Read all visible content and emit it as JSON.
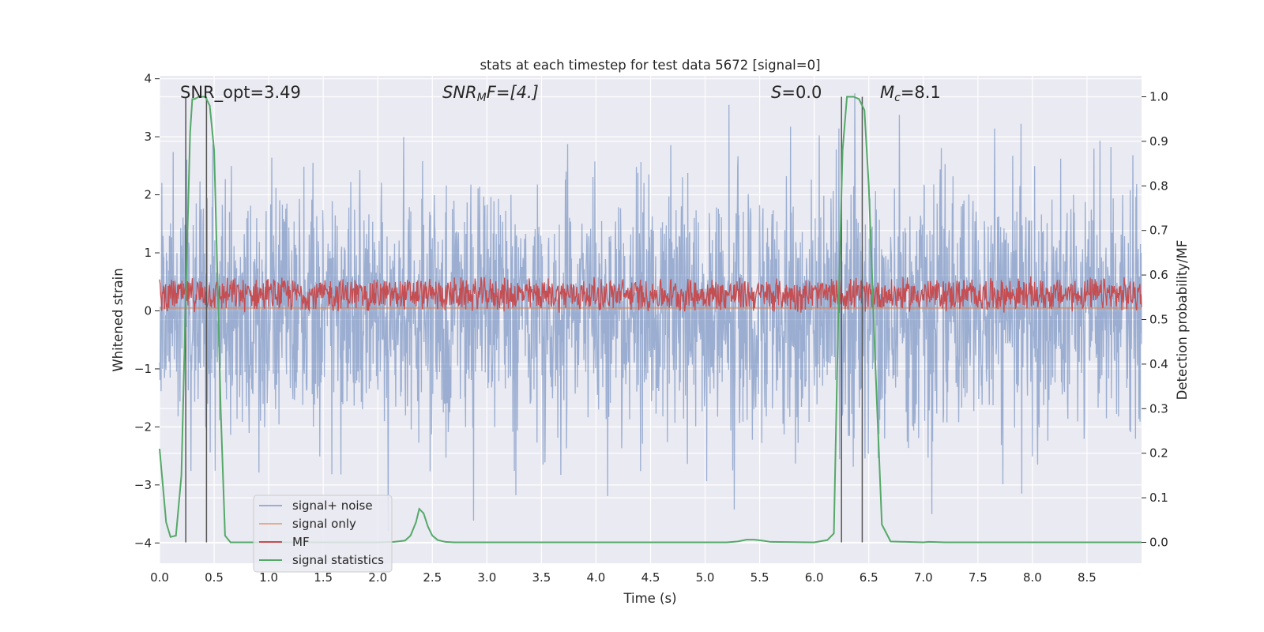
{
  "chart_data": {
    "type": "line",
    "title": "stats at each timestep for test data 5672 [signal=0]",
    "xlabel": "Time (s)",
    "ylabel": "Whitened strain",
    "y2label": "Detection probability/MF",
    "xlim": [
      0.0,
      9.0
    ],
    "ylim": [
      -4.35,
      4.05
    ],
    "y2lim": [
      -0.047,
      1.047
    ],
    "xticks": [
      "0.0",
      "0.5",
      "1.0",
      "1.5",
      "2.0",
      "2.5",
      "3.0",
      "3.5",
      "4.0",
      "4.5",
      "5.0",
      "5.5",
      "6.0",
      "6.5",
      "7.0",
      "7.5",
      "8.0",
      "8.5"
    ],
    "yticks": [
      "4",
      "3",
      "2",
      "1",
      "0",
      "−1",
      "−2",
      "−3",
      "−4"
    ],
    "y2ticks": [
      "1.0",
      "0.9",
      "0.8",
      "0.7",
      "0.6",
      "0.5",
      "0.4",
      "0.3",
      "0.2",
      "0.1",
      "0.0"
    ],
    "annotations": {
      "snr_opt": "SNR_opt=3.49",
      "snr_mf_main": "SNR",
      "snr_mf_sub": "M",
      "snr_mf_rest": "F=[4.]",
      "s_main": "S",
      "s_rest": "=0.0",
      "mc_main": "M",
      "mc_sub": "c",
      "mc_rest": "=8.1"
    },
    "legend": {
      "location": "lower-left",
      "entries": [
        "signal+ noise",
        "signal only",
        "MF",
        "signal statistics"
      ]
    },
    "vertical_markers_s": [
      0.24,
      0.43,
      6.25,
      6.44
    ],
    "series": [
      {
        "name": "signal+ noise",
        "axis": "left",
        "color": "#4c72b0",
        "std": 1.05,
        "description": "whitened noisy strain, approx ±4 range"
      },
      {
        "name": "signal only",
        "axis": "left",
        "color": "#dd8452",
        "values_const": 0.05
      },
      {
        "name": "MF",
        "axis": "left",
        "center": 0.28,
        "spread": 0.32,
        "color": "#c44e52"
      },
      {
        "name": "signal statistics",
        "axis": "right",
        "color": "#55a868",
        "x": [
          0.0,
          0.06,
          0.1,
          0.15,
          0.2,
          0.24,
          0.28,
          0.3,
          0.32,
          0.36,
          0.42,
          0.46,
          0.5,
          0.53,
          0.56,
          0.6,
          0.65,
          0.7,
          1.0,
          2.0,
          2.15,
          2.25,
          2.3,
          2.35,
          2.38,
          2.42,
          2.46,
          2.5,
          2.55,
          2.62,
          2.7,
          3.0,
          5.0,
          5.2,
          5.3,
          5.38,
          5.45,
          5.52,
          5.6,
          6.0,
          6.12,
          6.18,
          6.22,
          6.26,
          6.3,
          6.36,
          6.41,
          6.46,
          6.5,
          6.56,
          6.62,
          6.7,
          7.0,
          7.05,
          7.2,
          9.0
        ],
        "values": [
          0.21,
          0.045,
          0.012,
          0.015,
          0.15,
          0.55,
          0.92,
          0.995,
          0.995,
          1.0,
          1.0,
          0.98,
          0.88,
          0.6,
          0.3,
          0.015,
          0.0,
          0.0,
          0.0,
          0.0,
          0.001,
          0.004,
          0.015,
          0.045,
          0.075,
          0.065,
          0.035,
          0.015,
          0.005,
          0.001,
          0.0,
          0.0,
          0.0,
          0.0,
          0.002,
          0.006,
          0.006,
          0.004,
          0.001,
          0.0,
          0.005,
          0.02,
          0.5,
          0.88,
          1.0,
          1.0,
          0.995,
          0.97,
          0.8,
          0.4,
          0.04,
          0.002,
          0.0,
          0.001,
          0.0,
          0.0
        ]
      }
    ]
  }
}
